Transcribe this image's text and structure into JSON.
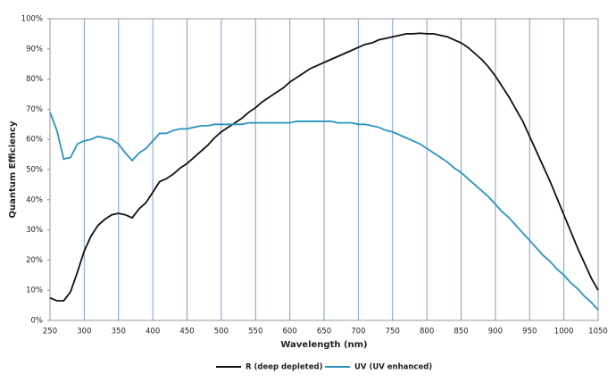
{
  "chart_data": {
    "type": "line",
    "xlabel": "Wavelength (nm)",
    "ylabel": "Quantum Efficiency",
    "x": [
      250,
      260,
      270,
      280,
      290,
      300,
      310,
      320,
      330,
      340,
      350,
      360,
      370,
      380,
      390,
      400,
      410,
      420,
      430,
      440,
      450,
      460,
      470,
      480,
      490,
      500,
      510,
      520,
      530,
      540,
      550,
      560,
      570,
      580,
      590,
      600,
      610,
      620,
      630,
      640,
      650,
      660,
      670,
      680,
      690,
      700,
      710,
      720,
      730,
      740,
      750,
      760,
      770,
      780,
      790,
      800,
      810,
      820,
      830,
      840,
      850,
      860,
      870,
      880,
      890,
      900,
      910,
      920,
      930,
      940,
      950,
      960,
      970,
      980,
      990,
      1000,
      1010,
      1020,
      1030,
      1040,
      1050
    ],
    "series": [
      {
        "name": "R (deep depleted)",
        "color": "#111111",
        "values": [
          7.5,
          6.5,
          6.5,
          9.5,
          16,
          23,
          28,
          31.5,
          33.5,
          35,
          35.5,
          35,
          34,
          37,
          39,
          42.5,
          46,
          47,
          48.5,
          50.5,
          52,
          54,
          56,
          58,
          60.5,
          62.5,
          64,
          65.5,
          67,
          69,
          70.5,
          72.5,
          74,
          75.5,
          77,
          79,
          80.5,
          82,
          83.5,
          84.5,
          85.5,
          86.5,
          87.5,
          88.5,
          89.5,
          90.5,
          91.5,
          92,
          93,
          93.5,
          94,
          94.5,
          95,
          95,
          95.2,
          95,
          95,
          94.5,
          94,
          93,
          92,
          90.5,
          88.5,
          86.5,
          84,
          81,
          77.5,
          74,
          70,
          66,
          61,
          56,
          51,
          46,
          40.5,
          35,
          29.5,
          24,
          19,
          14,
          10
        ]
      },
      {
        "name": "UV (UV enhanced)",
        "color": "#2a93c2",
        "values": [
          69,
          63,
          53.5,
          54,
          58.5,
          59.5,
          60,
          61,
          60.5,
          60,
          58.5,
          55.5,
          53,
          55.5,
          57,
          59.5,
          62,
          62,
          63,
          63.5,
          63.5,
          64,
          64.5,
          64.5,
          65,
          65,
          65,
          65,
          65,
          65.5,
          65.5,
          65.5,
          65.5,
          65.5,
          65.5,
          65.5,
          66,
          66,
          66,
          66,
          66,
          66,
          65.5,
          65.5,
          65.5,
          65,
          65,
          64.5,
          64,
          63,
          62.5,
          61.5,
          60.5,
          59.5,
          58.5,
          57,
          55.5,
          54,
          52.5,
          50.5,
          49,
          47,
          45,
          43,
          41,
          38.5,
          36,
          34,
          31.5,
          29,
          26.5,
          24,
          21.5,
          19.5,
          17,
          15,
          12.5,
          10.5,
          8,
          6,
          3.5
        ]
      }
    ],
    "xlim": [
      250,
      1050
    ],
    "xticks": [
      250,
      300,
      350,
      400,
      450,
      500,
      550,
      600,
      650,
      700,
      750,
      800,
      850,
      900,
      950,
      1000,
      1050
    ],
    "ylim": [
      0,
      100
    ],
    "yticks": [
      {
        "value": 0,
        "label": "0%"
      },
      {
        "value": 10,
        "label": "10%"
      },
      {
        "value": 20,
        "label": "20%"
      },
      {
        "value": 30,
        "label": "30%"
      },
      {
        "value": 40,
        "label": "40%"
      },
      {
        "value": 50,
        "label": "50%"
      },
      {
        "value": 60,
        "label": "60%"
      },
      {
        "value": 70,
        "label": "70%"
      },
      {
        "value": 80,
        "label": "80%"
      },
      {
        "value": 90,
        "label": "90%"
      },
      {
        "value": 100,
        "label": "100%"
      }
    ],
    "grid": "x",
    "grid_color": "#7f9fc8",
    "legend": "bottom"
  }
}
